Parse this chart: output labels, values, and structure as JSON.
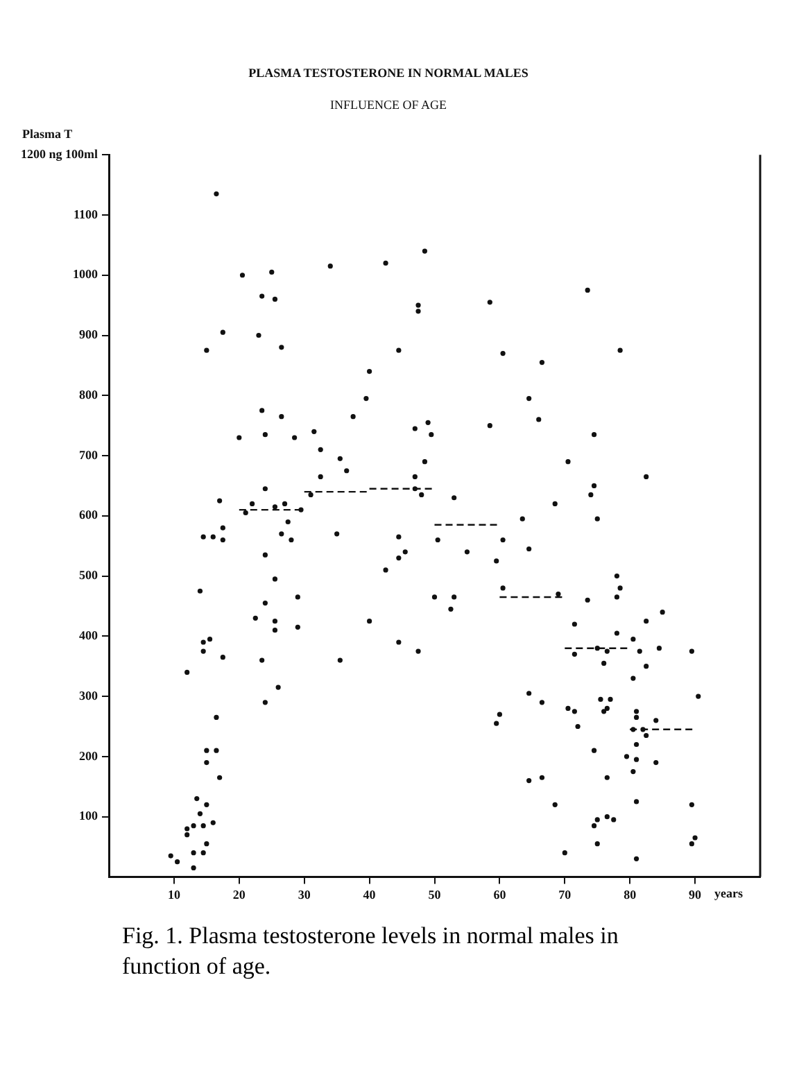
{
  "chart_data": {
    "type": "scatter",
    "title": "PLASMA TESTOSTERONE IN NORMAL MALES",
    "subtitle": "INFLUENCE OF AGE",
    "ylabel": "Plasma T",
    "xlabel": "years",
    "annotations": [
      "Fig. 1. Plasma testosterone levels in normal males in function of age."
    ],
    "xlim": [
      0,
      100
    ],
    "xticks": [
      10,
      20,
      30,
      40,
      50,
      60,
      70,
      80,
      90
    ],
    "ylim": [
      0,
      1200
    ],
    "yticks": [
      100,
      200,
      300,
      400,
      500,
      600,
      700,
      800,
      900,
      1000,
      1100,
      {
        "value": 1200,
        "label": "1200 ng 100ml"
      }
    ],
    "grid": false,
    "legend": false,
    "series": [
      {
        "marker": "circle",
        "color": "#111111",
        "x": [
          16.5,
          20.5,
          25,
          34,
          23.5,
          25.5,
          17.5,
          23,
          26.5,
          15,
          23.5,
          26.5,
          20,
          24,
          28.5,
          31.5,
          32.5,
          32.5,
          24,
          17,
          22,
          21,
          25.5,
          27,
          29.5,
          31,
          27.5,
          17.5,
          14.5,
          16,
          17.5,
          26.5,
          28,
          24,
          25.5,
          14,
          24,
          29,
          22.5,
          25.5,
          25.5,
          29,
          15.5,
          14.5,
          14.5,
          17.5,
          23.5,
          12,
          26,
          24,
          16.5,
          15,
          16.5,
          48.5,
          42.5,
          58.5,
          47.5,
          47.5,
          44.5,
          60.5,
          66.5,
          40,
          39.5,
          64.5,
          37.5,
          66,
          47,
          49,
          49.5,
          58.5,
          35.5,
          48.5,
          36.5,
          47,
          47,
          48,
          53,
          63.5,
          35,
          44.5,
          50.5,
          60.5,
          45.5,
          44.5,
          55,
          64.5,
          59.5,
          42.5,
          60.5,
          50,
          53,
          52.5,
          40,
          44.5,
          47.5,
          35.5,
          64.5,
          66.5,
          60,
          59.5,
          73.5,
          78.5,
          74.5,
          70.5,
          82.5,
          74.5,
          74,
          68.5,
          75,
          78,
          78.5,
          78,
          69,
          73.5,
          85,
          82.5,
          71.5,
          78,
          80.5,
          75,
          71.5,
          76.5,
          81.5,
          84.5,
          89.5,
          76,
          82.5,
          80.5,
          90.5,
          75.5,
          77,
          70.5,
          71.5,
          76.5,
          76,
          81,
          81,
          84,
          80.5,
          82,
          82.5,
          72,
          81,
          74.5,
          79.5,
          81,
          84,
          15,
          17,
          13.5,
          15,
          14,
          12,
          13,
          12,
          14.5,
          16,
          15,
          13,
          14.5,
          9.5,
          10.5,
          13,
          80.5,
          64.5,
          66.5,
          76.5,
          68.5,
          81,
          89.5,
          75,
          74.5,
          76.5,
          77.5,
          75,
          90,
          89.5,
          70,
          81
        ],
        "values": [
          1135,
          1000,
          1005,
          1015,
          965,
          960,
          905,
          900,
          880,
          875,
          775,
          765,
          730,
          735,
          730,
          740,
          710,
          665,
          645,
          625,
          620,
          605,
          615,
          620,
          610,
          635,
          590,
          580,
          565,
          565,
          560,
          570,
          560,
          535,
          495,
          475,
          455,
          465,
          430,
          425,
          410,
          415,
          395,
          390,
          375,
          365,
          360,
          340,
          315,
          290,
          265,
          210,
          210,
          1040,
          1020,
          955,
          950,
          940,
          875,
          870,
          855,
          840,
          795,
          795,
          765,
          760,
          745,
          755,
          735,
          750,
          695,
          690,
          675,
          665,
          645,
          635,
          630,
          595,
          570,
          565,
          560,
          560,
          540,
          530,
          540,
          545,
          525,
          510,
          480,
          465,
          465,
          445,
          425,
          390,
          375,
          360,
          305,
          290,
          270,
          255,
          975,
          875,
          735,
          690,
          665,
          650,
          635,
          620,
          595,
          500,
          480,
          465,
          470,
          460,
          440,
          425,
          420,
          405,
          395,
          380,
          370,
          375,
          375,
          380,
          375,
          355,
          350,
          330,
          300,
          295,
          295,
          280,
          275,
          280,
          275,
          275,
          265,
          260,
          245,
          245,
          235,
          250,
          220,
          210,
          200,
          195,
          190,
          190,
          165,
          130,
          120,
          105,
          80,
          85,
          70,
          85,
          90,
          55,
          40,
          40,
          35,
          25,
          15,
          175,
          160,
          165,
          165,
          120,
          125,
          120,
          95,
          85,
          100,
          95,
          55,
          65,
          55,
          40,
          30
        ]
      },
      {
        "type": "line",
        "marker": "none",
        "line_style": "dashed",
        "color": "#111111",
        "x": [
          20,
          30
        ],
        "values": [
          610,
          610
        ]
      },
      {
        "type": "line",
        "marker": "none",
        "line_style": "dashed",
        "color": "#111111",
        "x": [
          30,
          40
        ],
        "values": [
          640,
          640
        ]
      },
      {
        "type": "line",
        "marker": "none",
        "line_style": "dashed",
        "color": "#111111",
        "x": [
          40,
          50
        ],
        "values": [
          645,
          645
        ]
      },
      {
        "type": "line",
        "marker": "none",
        "line_style": "dashed",
        "color": "#111111",
        "x": [
          50,
          60
        ],
        "values": [
          585,
          585
        ]
      },
      {
        "type": "line",
        "marker": "none",
        "line_style": "dashed",
        "color": "#111111",
        "x": [
          60,
          70
        ],
        "values": [
          465,
          465
        ]
      },
      {
        "type": "line",
        "marker": "none",
        "line_style": "dashed",
        "color": "#111111",
        "x": [
          70,
          80
        ],
        "values": [
          380,
          380
        ]
      },
      {
        "type": "line",
        "marker": "none",
        "line_style": "dashed",
        "color": "#111111",
        "x": [
          80,
          90
        ],
        "values": [
          245,
          245
        ]
      }
    ]
  }
}
